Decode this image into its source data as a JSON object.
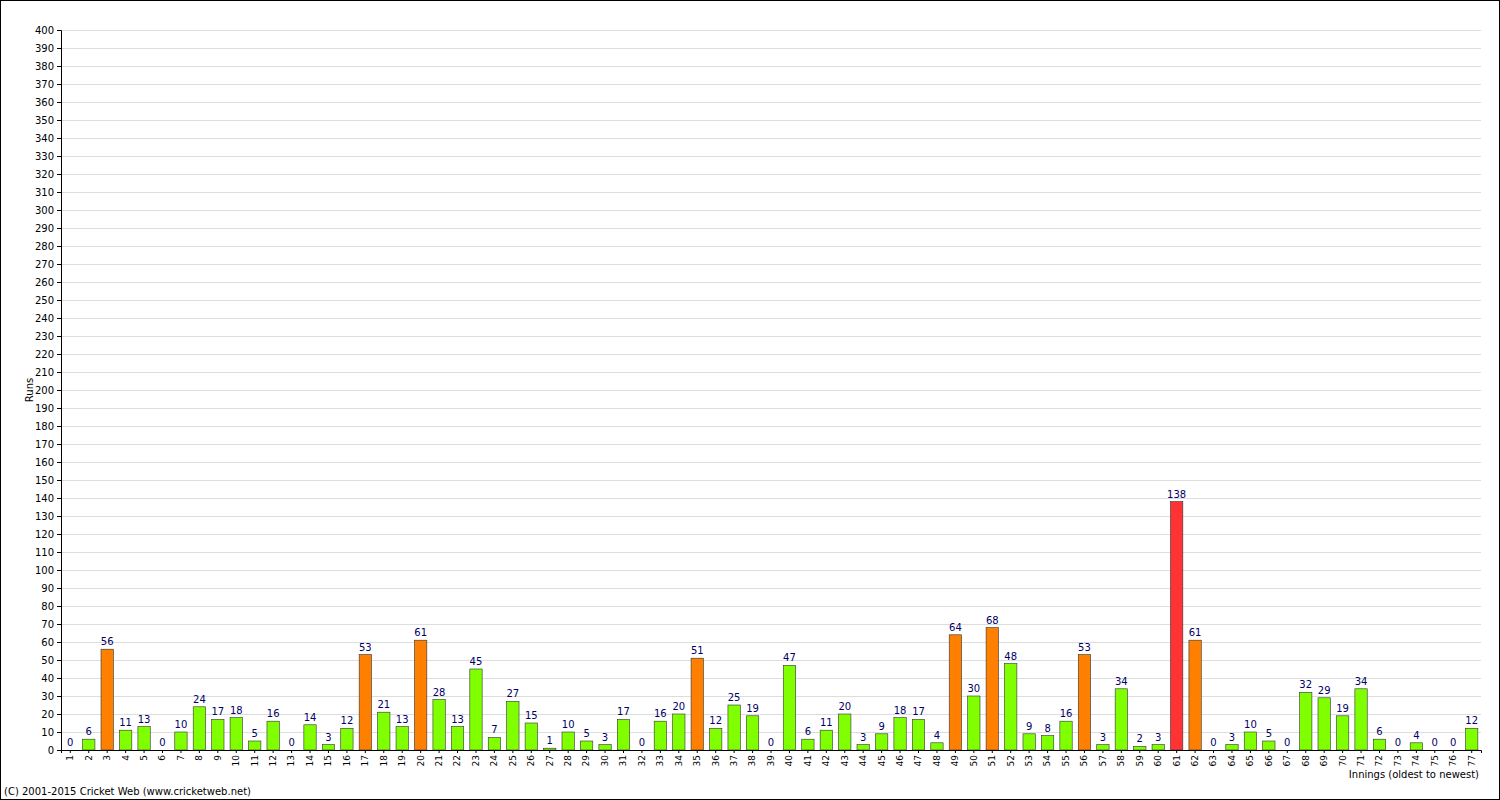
{
  "chart_data": {
    "type": "bar",
    "x_label": "Innings (oldest to newest)",
    "y_label": "Runs",
    "annotations": [
      "(C) 2001-2015 Cricket Web (www.cricketweb.net)"
    ],
    "categories": [
      "1",
      "2",
      "3",
      "4",
      "5",
      "6",
      "7",
      "8",
      "9",
      "10",
      "11",
      "12",
      "13",
      "14",
      "15",
      "16",
      "17",
      "18",
      "19",
      "20",
      "21",
      "22",
      "23",
      "24",
      "25",
      "26",
      "27",
      "28",
      "29",
      "30",
      "31",
      "32",
      "33",
      "34",
      "35",
      "36",
      "37",
      "38",
      "39",
      "40",
      "41",
      "42",
      "43",
      "44",
      "45",
      "46",
      "47",
      "48",
      "49",
      "50",
      "51",
      "52",
      "53",
      "54",
      "55",
      "56",
      "57",
      "58",
      "59",
      "60",
      "61",
      "62",
      "63",
      "64",
      "65",
      "66",
      "67",
      "68",
      "69",
      "70",
      "71",
      "72",
      "73",
      "74",
      "75",
      "76",
      "77"
    ],
    "values": [
      0,
      6,
      56,
      11,
      13,
      0,
      10,
      24,
      17,
      18,
      5,
      16,
      0,
      14,
      3,
      12,
      53,
      21,
      13,
      61,
      28,
      13,
      45,
      7,
      27,
      15,
      1,
      10,
      5,
      3,
      17,
      0,
      16,
      20,
      51,
      12,
      25,
      19,
      0,
      47,
      6,
      11,
      20,
      3,
      9,
      18,
      17,
      4,
      64,
      30,
      68,
      48,
      9,
      8,
      16,
      53,
      3,
      34,
      2,
      3,
      138,
      61,
      0,
      3,
      10,
      5,
      0,
      32,
      29,
      19,
      34,
      6,
      0,
      4,
      0,
      0,
      12
    ],
    "colors": [
      "#80ff00",
      "#80ff00",
      "#ff8000",
      "#80ff00",
      "#80ff00",
      "#80ff00",
      "#80ff00",
      "#80ff00",
      "#80ff00",
      "#80ff00",
      "#80ff00",
      "#80ff00",
      "#80ff00",
      "#80ff00",
      "#80ff00",
      "#80ff00",
      "#ff8000",
      "#80ff00",
      "#80ff00",
      "#ff8000",
      "#80ff00",
      "#80ff00",
      "#80ff00",
      "#80ff00",
      "#80ff00",
      "#80ff00",
      "#80ff00",
      "#80ff00",
      "#80ff00",
      "#80ff00",
      "#80ff00",
      "#80ff00",
      "#80ff00",
      "#80ff00",
      "#ff8000",
      "#80ff00",
      "#80ff00",
      "#80ff00",
      "#80ff00",
      "#80ff00",
      "#80ff00",
      "#80ff00",
      "#80ff00",
      "#80ff00",
      "#80ff00",
      "#80ff00",
      "#80ff00",
      "#80ff00",
      "#ff8000",
      "#80ff00",
      "#ff8000",
      "#80ff00",
      "#80ff00",
      "#80ff00",
      "#80ff00",
      "#ff8000",
      "#80ff00",
      "#80ff00",
      "#80ff00",
      "#80ff00",
      "#ff3333",
      "#ff8000",
      "#80ff00",
      "#80ff00",
      "#80ff00",
      "#80ff00",
      "#80ff00",
      "#80ff00",
      "#80ff00",
      "#80ff00",
      "#80ff00",
      "#80ff00",
      "#80ff00",
      "#80ff00",
      "#80ff00",
      "#80ff00",
      "#80ff00"
    ],
    "ylim": [
      0,
      400
    ],
    "yticks": [
      0,
      10,
      20,
      30,
      40,
      50,
      60,
      70,
      80,
      90,
      100,
      110,
      120,
      130,
      140,
      150,
      160,
      170,
      180,
      190,
      200,
      210,
      220,
      230,
      240,
      250,
      260,
      270,
      280,
      290,
      300,
      310,
      320,
      330,
      340,
      350,
      360,
      370,
      380,
      390,
      400
    ],
    "grid": true,
    "data_labels": true
  }
}
